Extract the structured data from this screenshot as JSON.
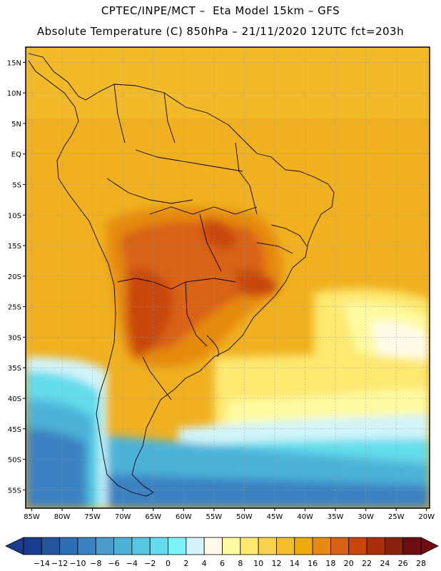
{
  "header": {
    "line1": "CPTEC/INPE/MCT –  Eta Model 15km – GFS",
    "line2": "Absolute Temperature (C) 850hPa – 21/11/2020 12UTC fct=203h"
  },
  "map": {
    "lon_range": [
      -86,
      -19.5
    ],
    "lat_range": [
      -58,
      17.5
    ],
    "lat_ticks": [
      "15N",
      "10N",
      "5N",
      "EQ",
      "5S",
      "10S",
      "15S",
      "20S",
      "25S",
      "30S",
      "35S",
      "40S",
      "45S",
      "50S",
      "55S"
    ],
    "lon_ticks": [
      "85W",
      "80W",
      "75W",
      "70W",
      "65W",
      "60W",
      "55W",
      "50W",
      "45W",
      "40W",
      "35W",
      "30W",
      "25W",
      "20W"
    ]
  },
  "colorbar": {
    "labels": [
      "-14",
      "-12",
      "-10",
      "-8",
      "-6",
      "-4",
      "-2",
      "0",
      "2",
      "4",
      "6",
      "8",
      "10",
      "12",
      "14",
      "16",
      "18",
      "20",
      "22",
      "24",
      "26",
      "28"
    ],
    "colors": [
      "#1a3c8c",
      "#2456a0",
      "#2e6cb4",
      "#3a82c2",
      "#4a9ccc",
      "#4cb2d8",
      "#56c8e2",
      "#64dcec",
      "#7af2f8",
      "#d2f4fa",
      "#fffbe8",
      "#fffaa0",
      "#fde870",
      "#f8d24c",
      "#f2be2c",
      "#eeaa0a",
      "#e68a10",
      "#d86214",
      "#c8460c",
      "#aa300c",
      "#8a2210",
      "#6e0e12"
    ]
  }
}
